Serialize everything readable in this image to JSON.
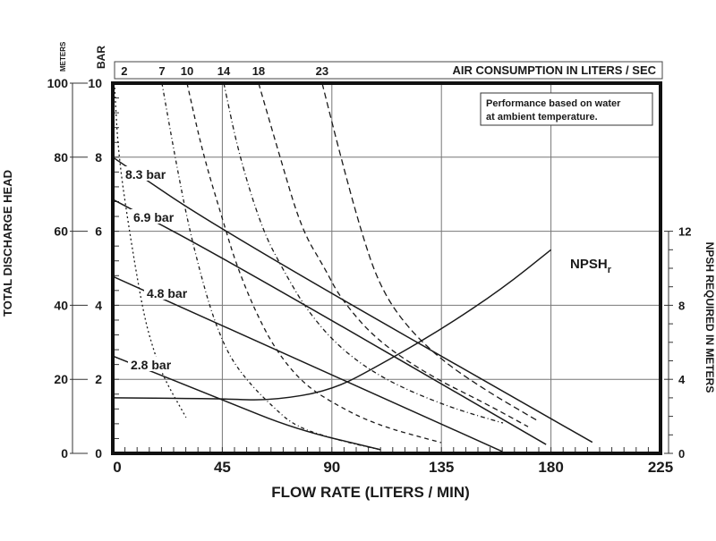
{
  "chart_data": {
    "type": "line",
    "xlabel": "FLOW RATE (LITERS / MIN)",
    "ylabel_left": "TOTAL DISCHARGE HEAD",
    "ylabel_left_units": [
      "METERS",
      "BAR"
    ],
    "ylabel_right": "NPSH REQUIRED IN METERS",
    "top_axis_label": "AIR CONSUMPTION IN LITERS / SEC",
    "note": [
      "Performance based on water",
      "at ambient temperature."
    ],
    "xlim": [
      0,
      225
    ],
    "ylim_bar": [
      0,
      10
    ],
    "ylim_meters": [
      0,
      100
    ],
    "ylim_npsh": [
      0,
      12
    ],
    "x_ticks": [
      "0",
      "45",
      "90",
      "135",
      "180",
      "225"
    ],
    "y_ticks_meters": [
      "100",
      "80",
      "60",
      "40",
      "20",
      "0"
    ],
    "y_ticks_bar": [
      "10",
      "8",
      "6",
      "4",
      "2",
      "0"
    ],
    "y_ticks_npsh": [
      "12",
      "8",
      "4",
      "0"
    ],
    "grid": true,
    "pressure_series": [
      {
        "name": "8.3 bar",
        "points": [
          [
            0,
            8.0
          ],
          [
            45,
            6.0
          ],
          [
            197,
            0.3
          ]
        ]
      },
      {
        "name": "6.9 bar",
        "points": [
          [
            0,
            6.86
          ],
          [
            45,
            5.3
          ],
          [
            178,
            0.24
          ]
        ]
      },
      {
        "name": "4.8 bar",
        "points": [
          [
            0,
            4.78
          ],
          [
            45,
            3.45
          ],
          [
            160,
            0.05
          ]
        ]
      },
      {
        "name": "2.8 bar",
        "points": [
          [
            0,
            2.63
          ],
          [
            45,
            1.45
          ],
          [
            75,
            0.65
          ],
          [
            110,
            0.1
          ]
        ]
      }
    ],
    "air_series": [
      {
        "name": "2",
        "points": [
          [
            0.7,
            10
          ],
          [
            2.2,
            8.14
          ],
          [
            6.3,
            6.21
          ],
          [
            12.5,
            3.79
          ],
          [
            16.9,
            2.75
          ],
          [
            21.0,
            2.03
          ],
          [
            30.1,
            0.97
          ]
        ]
      },
      {
        "name": "7",
        "points": [
          [
            20.2,
            10
          ],
          [
            25.4,
            8.07
          ],
          [
            30.9,
            6.21
          ],
          [
            37.1,
            4.59
          ],
          [
            41.9,
            3.55
          ],
          [
            48.2,
            2.58
          ],
          [
            56.6,
            1.86
          ],
          [
            65.1,
            1.3
          ],
          [
            75.0,
            0.72
          ],
          [
            93.4,
            0.34
          ],
          [
            109.9,
            0.1
          ]
        ]
      },
      {
        "name": "10",
        "points": [
          [
            30.5,
            10
          ],
          [
            37.1,
            8.07
          ],
          [
            45.6,
            6.21
          ],
          [
            50.4,
            5.17
          ],
          [
            57.7,
            3.96
          ],
          [
            66.5,
            2.83
          ],
          [
            77.5,
            1.93
          ],
          [
            89.7,
            1.38
          ],
          [
            108.1,
            0.77
          ],
          [
            134.9,
            0.29
          ]
        ]
      },
      {
        "name": "14",
        "points": [
          [
            45.6,
            10
          ],
          [
            51.8,
            8.07
          ],
          [
            61.4,
            6.04
          ],
          [
            70.2,
            4.93
          ],
          [
            79.8,
            3.86
          ],
          [
            93.4,
            2.83
          ],
          [
            111.8,
            1.98
          ],
          [
            137.5,
            1.26
          ],
          [
            160.3,
            0.82
          ]
        ]
      },
      {
        "name": "18",
        "points": [
          [
            59.9,
            10
          ],
          [
            68.4,
            8.07
          ],
          [
            77.6,
            6.04
          ],
          [
            87.1,
            5.0
          ],
          [
            93.4,
            4.2
          ],
          [
            108.1,
            3.07
          ],
          [
            130.1,
            2.1
          ],
          [
            152.2,
            1.38
          ],
          [
            170.6,
            0.72
          ]
        ]
      },
      {
        "name": "23",
        "points": [
          [
            86.0,
            10
          ],
          [
            93.4,
            8.07
          ],
          [
            101.8,
            6.04
          ],
          [
            109.2,
            4.59
          ],
          [
            119.1,
            3.55
          ],
          [
            133.8,
            2.58
          ],
          [
            152.2,
            1.74
          ],
          [
            174.3,
            0.89
          ]
        ]
      }
    ],
    "npsh_series": {
      "name": "NPSH",
      "subscript": "r",
      "points_meters": [
        [
          0,
          3.0
        ],
        [
          45,
          2.95
        ],
        [
          65,
          2.85
        ],
        [
          90,
          3.4
        ],
        [
          110,
          4.8
        ],
        [
          135,
          6.7
        ],
        [
          160,
          8.9
        ],
        [
          180,
          11.0
        ]
      ]
    },
    "colors": {
      "line": "#1a1a1a",
      "grid": "#777777",
      "frame": "#111111"
    }
  }
}
